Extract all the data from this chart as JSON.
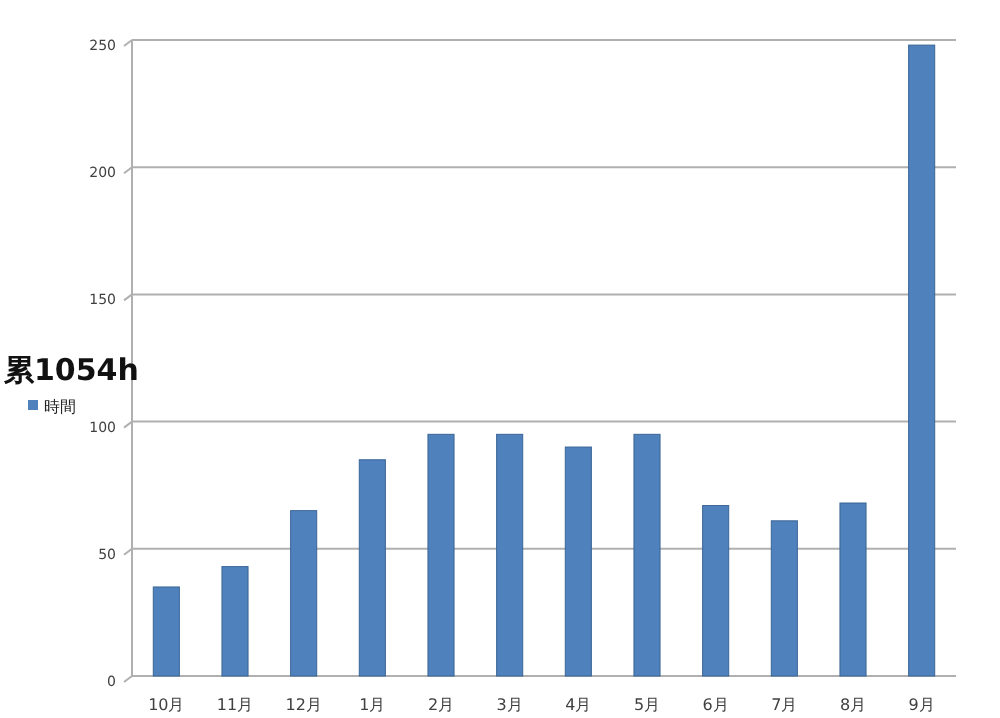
{
  "chart_data": {
    "type": "bar",
    "title": "累1054h",
    "categories": [
      "10月",
      "11月",
      "12月",
      "1月",
      "2月",
      "3月",
      "4月",
      "5月",
      "6月",
      "7月",
      "8月",
      "9月"
    ],
    "series": [
      {
        "name": "時間",
        "color": "#4f81bd",
        "values": [
          35,
          43,
          65,
          85,
          95,
          95,
          90,
          95,
          67,
          61,
          68,
          248
        ]
      }
    ],
    "ylim": [
      0,
      250
    ],
    "yticks": [
      0,
      50,
      100,
      150,
      200,
      250
    ],
    "grid": "y",
    "legend": "left"
  }
}
